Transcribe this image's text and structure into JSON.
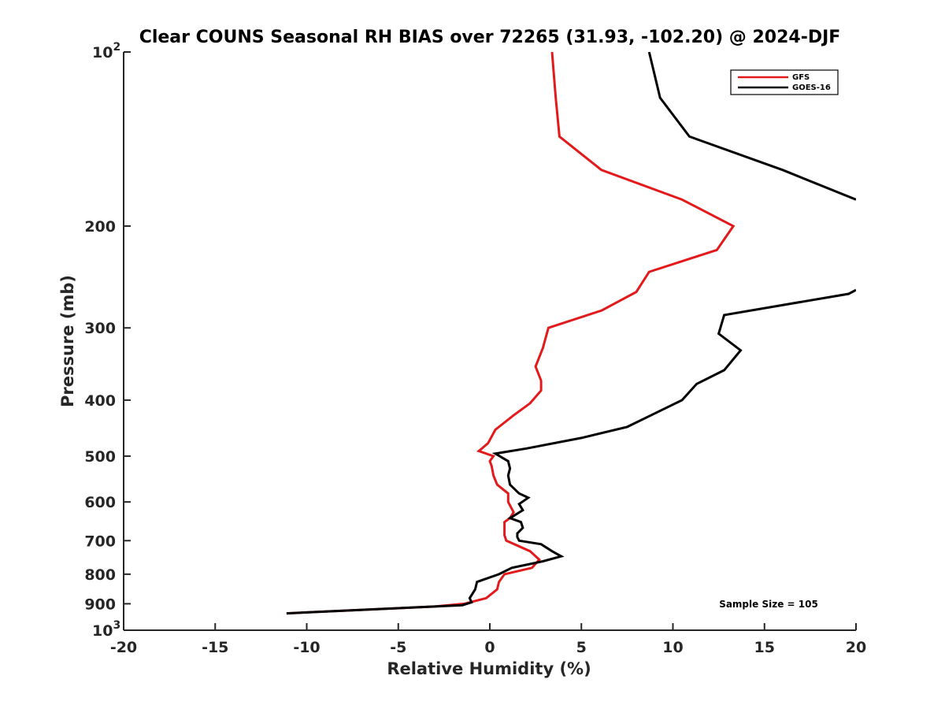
{
  "chart_data": {
    "type": "line",
    "title": "Clear COUNS Seasonal RH BIAS over 72265 (31.93, -102.20) @ 2024-DJF",
    "xlabel": "Relative Humidity (%)",
    "ylabel": "Pressure (mb)",
    "xlim": [
      -20,
      20
    ],
    "ylim": [
      100,
      1000
    ],
    "yscale": "log",
    "y_reversed": true,
    "x_ticks": [
      "-20",
      "-15",
      "-10",
      "-5",
      "0",
      "5",
      "10",
      "15",
      "20"
    ],
    "x_tick_values": [
      -20,
      -15,
      -10,
      -5,
      0,
      5,
      10,
      15,
      20
    ],
    "y_ticks": [
      {
        "value": 100,
        "base": "10",
        "exp": "2"
      },
      {
        "value": 200,
        "base": "200",
        "exp": ""
      },
      {
        "value": 300,
        "base": "300",
        "exp": ""
      },
      {
        "value": 400,
        "base": "400",
        "exp": ""
      },
      {
        "value": 500,
        "base": "500",
        "exp": ""
      },
      {
        "value": 600,
        "base": "600",
        "exp": ""
      },
      {
        "value": 700,
        "base": "700",
        "exp": ""
      },
      {
        "value": 800,
        "base": "800",
        "exp": ""
      },
      {
        "value": 900,
        "base": "900",
        "exp": ""
      },
      {
        "value": 1000,
        "base": "10",
        "exp": "3"
      }
    ],
    "legend_position": "top-right",
    "series": [
      {
        "name": "GFS",
        "color": "#e31a1c",
        "x": [
          3.4,
          3.6,
          3.8,
          6.1,
          10.5,
          13.3,
          12.4,
          8.7,
          8.0,
          6.1,
          3.2,
          2.9,
          2.5,
          2.8,
          2.8,
          2.2,
          1.3,
          0.3,
          -0.1,
          -0.6,
          0.2,
          0.0,
          0.1,
          0.2,
          0.4,
          1.0,
          1.0,
          1.3,
          1.1,
          0.8,
          0.8,
          0.8,
          0.9,
          2.2,
          2.7,
          2.3,
          0.8,
          0.5,
          0.4,
          -0.2,
          -1.4,
          -3.0,
          -11.1
        ],
        "y": [
          100,
          120,
          140,
          160,
          180,
          200,
          220,
          240,
          260,
          280,
          300,
          325,
          350,
          370,
          385,
          405,
          425,
          450,
          475,
          490,
          500,
          510,
          520,
          540,
          560,
          580,
          600,
          625,
          640,
          650,
          665,
          685,
          700,
          730,
          755,
          780,
          800,
          825,
          850,
          880,
          900,
          910,
          935
        ]
      },
      {
        "name": "GOES-16",
        "color": "#000000",
        "x": [
          8.7,
          9.3,
          10.9,
          16.0,
          20.0,
          null,
          20.0,
          19.6,
          12.8,
          12.5,
          13.7,
          12.8,
          11.3,
          10.5,
          8.8,
          7.5,
          5.0,
          2.0,
          0.3,
          1.0,
          1.1,
          1.0,
          1.1,
          1.6,
          2.1,
          1.6,
          1.8,
          1.1,
          1.7,
          1.8,
          1.5,
          1.5,
          1.6,
          2.8,
          3.4,
          3.9,
          2.9,
          1.2,
          0.5,
          -0.7,
          -0.8,
          -1.1,
          -1.0,
          -1.5,
          -11.1
        ],
        "y": [
          100,
          120,
          140,
          160,
          180,
          null,
          258,
          262,
          285,
          307,
          328,
          355,
          375,
          400,
          425,
          445,
          465,
          485,
          495,
          510,
          525,
          540,
          560,
          580,
          590,
          605,
          620,
          640,
          650,
          665,
          680,
          690,
          700,
          710,
          730,
          745,
          760,
          780,
          800,
          825,
          850,
          880,
          895,
          905,
          935
        ]
      }
    ],
    "annotation": "Sample Size = 105"
  }
}
